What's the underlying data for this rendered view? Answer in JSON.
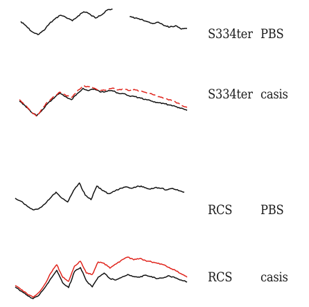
{
  "chart_data": {
    "type": "line",
    "title": "",
    "xlabel": "",
    "ylabel": "",
    "grid": false,
    "panels": [
      {
        "strain": "S334ter",
        "condition": "PBS",
        "series": [
          {
            "color": "#111111",
            "values": [
              0.1,
              -0.6,
              -1.4,
              -1.8,
              -1.2,
              -0.2,
              0.5,
              1.0,
              0.6,
              0.2,
              0.9,
              1.5,
              1.2,
              0.6,
              1.0,
              1.7,
              1.9,
              null,
              null,
              0.8,
              0.6,
              0.4,
              0.1,
              -0.2,
              0.0,
              -0.5,
              -0.7,
              -0.5,
              -1.0,
              -0.9
            ]
          }
        ]
      },
      {
        "strain": "S334ter",
        "condition": "casis",
        "series": [
          {
            "color": "#111111",
            "values": [
              -0.1,
              -0.7,
              -1.5,
              -2.0,
              -1.2,
              -0.3,
              0.3,
              1.0,
              0.5,
              0.1,
              0.9,
              1.6,
              1.3,
              1.5,
              1.1,
              1.2,
              1.3,
              1.0,
              0.9,
              0.6,
              0.5,
              0.3,
              0.1,
              -0.1,
              -0.3,
              -0.4,
              -0.6,
              -0.8,
              -1.0,
              -1.3
            ]
          },
          {
            "color": "#e0241c",
            "dashed": true,
            "values": [
              0.1,
              -0.6,
              -1.5,
              -2.1,
              -1.0,
              -0.1,
              0.5,
              1.1,
              0.7,
              0.4,
              1.2,
              1.9,
              1.8,
              1.6,
              1.3,
              1.4,
              1.6,
              1.4,
              1.5,
              1.3,
              1.4,
              1.2,
              1.0,
              0.8,
              0.5,
              0.3,
              0.1,
              -0.2,
              -0.6,
              -0.9
            ]
          }
        ]
      },
      {
        "strain": "RCS",
        "condition": "PBS",
        "series": [
          {
            "color": "#111111",
            "values": [
              0.0,
              -0.4,
              -1.0,
              -1.5,
              -1.4,
              -0.8,
              0.0,
              0.8,
              0.0,
              -0.5,
              1.0,
              2.0,
              0.4,
              -0.2,
              1.6,
              1.0,
              0.6,
              0.9,
              1.3,
              1.5,
              1.3,
              1.6,
              1.5,
              1.2,
              1.4,
              1.3,
              1.1,
              1.3,
              1.0,
              0.8
            ]
          }
        ]
      },
      {
        "strain": "RCS",
        "condition": "casis",
        "series": [
          {
            "color": "#111111",
            "values": [
              -0.4,
              -1.0,
              -1.6,
              -2.1,
              -1.6,
              -0.5,
              0.8,
              2.0,
              0.2,
              -0.5,
              1.8,
              2.4,
              0.5,
              -0.4,
              1.0,
              1.6,
              0.8,
              0.6,
              1.0,
              1.4,
              1.1,
              1.0,
              1.3,
              1.1,
              0.8,
              0.9,
              1.2,
              0.9,
              0.6,
              0.3
            ]
          },
          {
            "color": "#e0241c",
            "values": [
              -0.2,
              -0.8,
              -1.4,
              -1.9,
              -1.2,
              0.0,
              1.6,
              2.8,
              1.0,
              0.4,
              2.6,
              3.3,
              1.6,
              1.4,
              3.2,
              3.0,
              2.3,
              2.9,
              3.5,
              3.9,
              3.5,
              3.7,
              3.4,
              3.2,
              3.0,
              2.8,
              2.4,
              2.0,
              1.5,
              1.0
            ]
          }
        ]
      }
    ]
  }
}
